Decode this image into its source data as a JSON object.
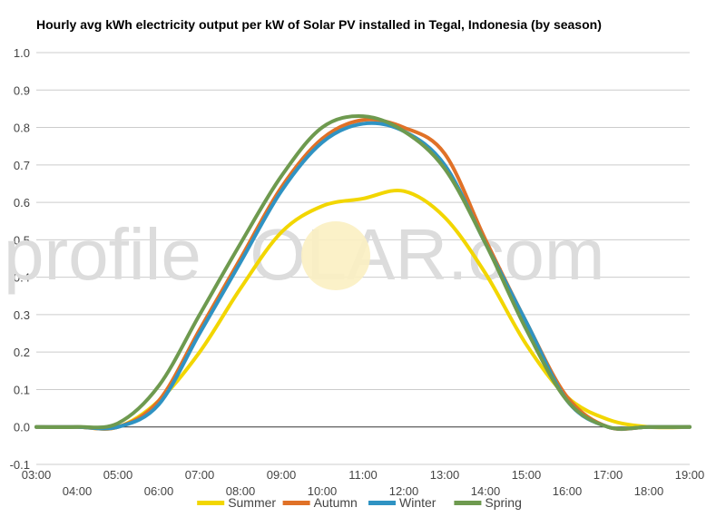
{
  "chart_data": {
    "type": "line",
    "title": "Hourly avg kWh electricity output per kW of Solar PV installed in Tegal, Indonesia (by season)",
    "xlabel": "",
    "ylabel": "",
    "ylim": [
      -0.1,
      1.0
    ],
    "yticks": [
      "-0.1",
      "0.0",
      "0.1",
      "0.2",
      "0.3",
      "0.4",
      "0.5",
      "0.6",
      "0.7",
      "0.8",
      "0.9",
      "1.0"
    ],
    "xlim": [
      3,
      19
    ],
    "xticks": [
      "03:00",
      "04:00",
      "05:00",
      "06:00",
      "07:00",
      "08:00",
      "09:00",
      "10:00",
      "11:00",
      "12:00",
      "13:00",
      "14:00",
      "15:00",
      "16:00",
      "17:00",
      "18:00",
      "19:00"
    ],
    "x": [
      3,
      4,
      5,
      6,
      7,
      8,
      9,
      10,
      11,
      12,
      13,
      14,
      15,
      16,
      17,
      18,
      19
    ],
    "grid": true,
    "legend_position": "bottom",
    "watermark": "profileSOLAR.com",
    "series": [
      {
        "name": "Summer",
        "color": "#f2d600",
        "values": [
          0.0,
          0.0,
          0.0,
          0.07,
          0.2,
          0.37,
          0.52,
          0.59,
          0.61,
          0.63,
          0.56,
          0.41,
          0.22,
          0.08,
          0.02,
          0.0,
          0.0
        ]
      },
      {
        "name": "Autumn",
        "color": "#e07127",
        "values": [
          0.0,
          0.0,
          0.0,
          0.07,
          0.26,
          0.45,
          0.64,
          0.77,
          0.82,
          0.8,
          0.73,
          0.5,
          0.28,
          0.08,
          0.0,
          0.0,
          0.0
        ]
      },
      {
        "name": "Winter",
        "color": "#2f93c3",
        "values": [
          0.0,
          0.0,
          0.0,
          0.06,
          0.25,
          0.44,
          0.63,
          0.76,
          0.81,
          0.79,
          0.7,
          0.49,
          0.28,
          0.07,
          0.0,
          0.0,
          0.0
        ]
      },
      {
        "name": "Spring",
        "color": "#6e9a4f",
        "values": [
          0.0,
          0.0,
          0.01,
          0.11,
          0.3,
          0.49,
          0.67,
          0.8,
          0.83,
          0.79,
          0.69,
          0.49,
          0.26,
          0.07,
          0.0,
          0.0,
          0.0
        ]
      }
    ]
  }
}
